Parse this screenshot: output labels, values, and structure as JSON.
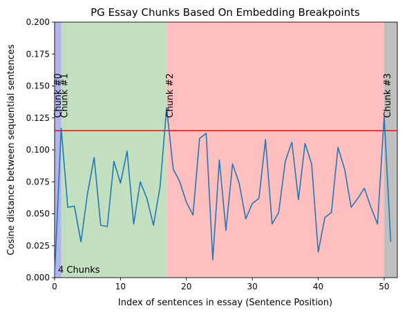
{
  "chart_data": {
    "type": "line",
    "title": "PG Essay Chunks Based On Embedding Breakpoints",
    "xlabel": "Index of sentences in essay (Sentence Position)",
    "ylabel": "Cosine distance between sequential sentences",
    "xlim": [
      0,
      52
    ],
    "ylim": [
      0,
      0.2
    ],
    "x_ticks": [
      0,
      10,
      20,
      30,
      40,
      50
    ],
    "y_ticks": [
      0.0,
      0.025,
      0.05,
      0.075,
      0.1,
      0.125,
      0.15,
      0.175,
      0.2
    ],
    "y_tick_labels": [
      "0.000",
      "0.025",
      "0.050",
      "0.075",
      "0.100",
      "0.125",
      "0.150",
      "0.175",
      "0.200"
    ],
    "threshold": 0.115,
    "threshold_color": "#ff0000",
    "line_color": "#1f77b4",
    "annotation": "4 Chunks",
    "chunks": [
      {
        "label": "Chunk #0",
        "start": 0,
        "end": 1,
        "color": "#b3b3ee"
      },
      {
        "label": "Chunk #1",
        "start": 1,
        "end": 17,
        "color": "#c2dfc0"
      },
      {
        "label": "Chunk #2",
        "start": 17,
        "end": 50,
        "color": "#ffbfbf"
      },
      {
        "label": "Chunk #3",
        "start": 50,
        "end": 52,
        "color": "#bfbfbf"
      }
    ],
    "x": [
      0,
      1,
      2,
      3,
      4,
      5,
      6,
      7,
      8,
      9,
      10,
      11,
      12,
      13,
      14,
      15,
      16,
      17,
      18,
      19,
      20,
      21,
      22,
      23,
      24,
      25,
      26,
      27,
      28,
      29,
      30,
      31,
      32,
      33,
      34,
      35,
      36,
      37,
      38,
      39,
      40,
      41,
      42,
      43,
      44,
      45,
      46,
      47,
      48,
      49,
      50,
      51
    ],
    "values": [
      0.002,
      0.117,
      0.055,
      0.056,
      0.028,
      0.066,
      0.094,
      0.041,
      0.04,
      0.091,
      0.074,
      0.099,
      0.042,
      0.075,
      0.062,
      0.041,
      0.071,
      0.133,
      0.085,
      0.075,
      0.059,
      0.049,
      0.109,
      0.113,
      0.014,
      0.092,
      0.037,
      0.089,
      0.074,
      0.046,
      0.058,
      0.062,
      0.108,
      0.042,
      0.051,
      0.091,
      0.106,
      0.061,
      0.105,
      0.089,
      0.02,
      0.047,
      0.051,
      0.102,
      0.085,
      0.055,
      0.062,
      0.07,
      0.055,
      0.042,
      0.126,
      0.028
    ]
  }
}
